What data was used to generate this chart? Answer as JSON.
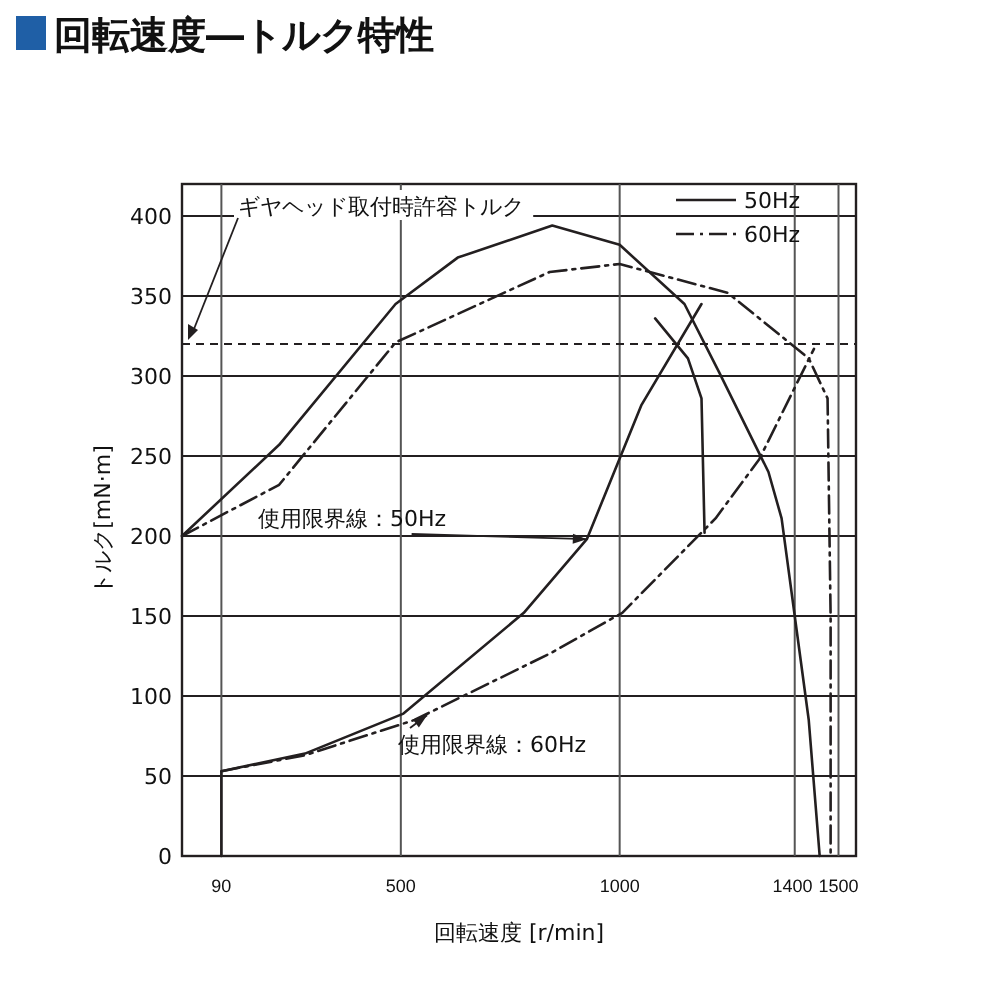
{
  "chart_data": {
    "type": "line",
    "title": "回転速度―トルク特性",
    "xlabel": "回転速度 [r/min]",
    "ylabel": "トルク[mN·m]",
    "xlim": [
      0,
      1540
    ],
    "ylim": [
      0,
      420
    ],
    "xticks": [
      90,
      500,
      1000,
      1400,
      1500
    ],
    "yticks": [
      0,
      50,
      100,
      150,
      200,
      250,
      300,
      350,
      400
    ],
    "grid": true,
    "legend": "top right",
    "series": [
      {
        "name": "50Hz",
        "color": "#231f20",
        "line_style": "solid",
        "x": [
          0,
          222,
          488,
          630,
          846,
          1000,
          1148,
          1228,
          1340,
          1370,
          1432,
          1457
        ],
        "values": [
          200,
          257,
          345,
          374,
          394,
          382,
          345,
          302,
          240,
          211,
          85,
          0
        ]
      },
      {
        "name": "60Hz",
        "color": "#231f20",
        "line_style": "dashed",
        "x": [
          0,
          222,
          488,
          840,
          1000,
          1247,
          1432,
          1475,
          1482,
          1482
        ],
        "values": [
          200,
          232,
          321,
          365,
          370,
          352,
          311,
          286,
          150,
          0
        ]
      },
      {
        "color": "#231f20",
        "line_style": "solid",
        "x": [
          1081,
          1156,
          1187,
          1194
        ],
        "values": [
          336,
          311,
          286,
          202
        ]
      },
      {
        "color": "#231f20",
        "line_style": "solid",
        "x": [
          90,
          90,
          281,
          506,
          781,
          925,
          1050,
          1187
        ],
        "values": [
          0,
          53,
          64,
          89,
          152,
          198,
          282,
          345
        ]
      },
      {
        "color": "#231f20",
        "line_style": "dashed",
        "x": [
          90,
          281,
          531,
          844,
          1006,
          1219,
          1319,
          1444
        ],
        "values": [
          53,
          63,
          85,
          127,
          152,
          211,
          248,
          317
        ]
      }
    ],
    "ref_lines": [
      {
        "axis": "y",
        "value": 320,
        "label": "ギヤヘッド取付時許容トルク",
        "line_style": "dashed"
      }
    ],
    "annotations": [
      {
        "text": "使用限界線：50Hz",
        "x": 925,
        "y": 198
      },
      {
        "text": "使用限界線：60Hz",
        "x": 560,
        "y": 88
      }
    ]
  }
}
